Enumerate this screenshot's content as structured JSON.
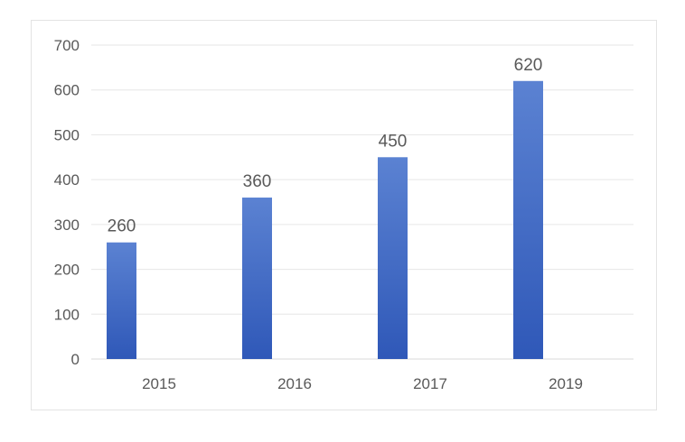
{
  "chart_data": {
    "type": "bar",
    "categories": [
      "2015",
      "2016",
      "2017",
      "2019"
    ],
    "values": [
      260,
      360,
      450,
      620
    ],
    "data_labels": [
      "260",
      "360",
      "450",
      "620"
    ],
    "title": "",
    "xlabel": "",
    "ylabel": "",
    "ylim": [
      0,
      700
    ],
    "yticks": [
      0,
      100,
      200,
      300,
      400,
      500,
      600,
      700
    ],
    "grid": true,
    "legend": "none",
    "colors": {
      "bar_top": "#5b82d2",
      "bar_bottom": "#2f58b8",
      "grid": "#e6e6e6",
      "axis": "#d9d9d9",
      "text": "#595959"
    }
  }
}
